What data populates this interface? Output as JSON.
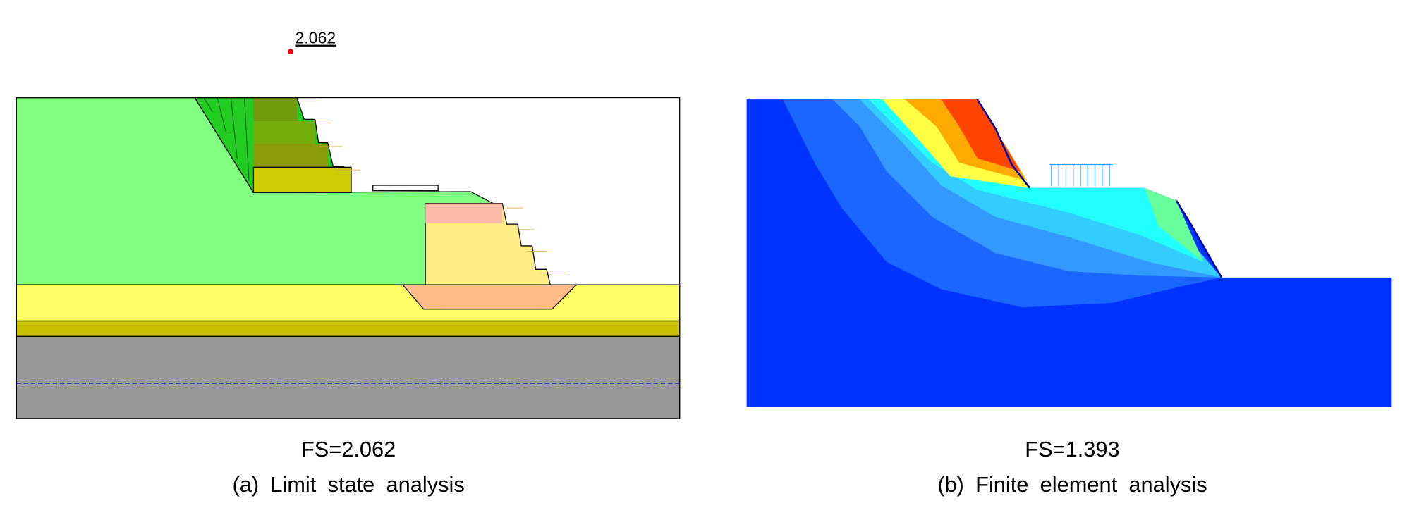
{
  "panels": [
    {
      "marker_label": "2.062",
      "result": "FS=2.062",
      "caption": "(a) Limit state analysis"
    },
    {
      "result": "FS=1.393",
      "caption": "(b) Finite element analysis"
    }
  ]
}
